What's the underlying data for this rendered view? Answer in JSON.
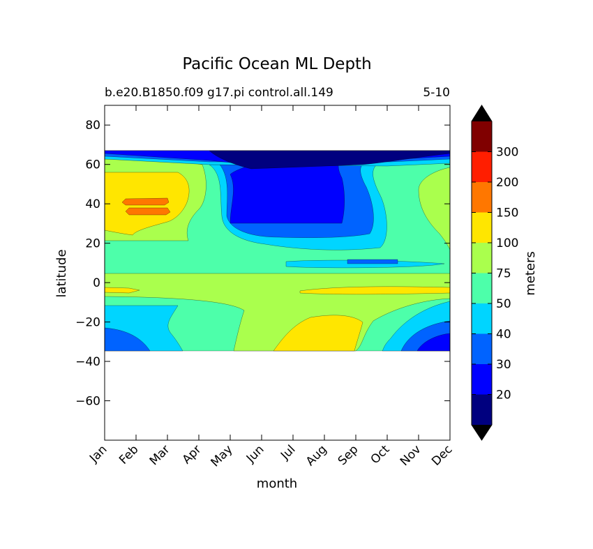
{
  "figure": {
    "title": "Pacific Ocean ML Depth",
    "subtitle_left": "b.e20.B1850.f09 g17.pi control.all.149",
    "subtitle_right": "5-10"
  },
  "chart_data": {
    "type": "heatmap",
    "title": "Pacific Ocean ML Depth",
    "xlabel": "month",
    "ylabel": "latitude",
    "x_ticks": [
      "Jan",
      "Feb",
      "Mar",
      "Apr",
      "May",
      "Jun",
      "Jul",
      "Aug",
      "Sep",
      "Oct",
      "Nov",
      "Dec"
    ],
    "y_ticks": [
      80,
      60,
      40,
      20,
      0,
      -20,
      -40,
      -60
    ],
    "ylim": [
      -80,
      90
    ],
    "data_lat_range": [
      -34,
      67
    ],
    "colorbar": {
      "label": "meters",
      "levels": [
        20,
        30,
        40,
        50,
        75,
        100,
        150,
        200,
        300
      ],
      "tick_labels": [
        "20",
        "30",
        "40",
        "50",
        "75",
        "100",
        "150",
        "200",
        "300"
      ],
      "colors": [
        "#00007f",
        "#0000ff",
        "#0063ff",
        "#00d5ff",
        "#4dffaa",
        "#aaff4d",
        "#ffe600",
        "#ff7700",
        "#ff1e00",
        "#800000"
      ],
      "extend": "both",
      "under_color": "#000000",
      "over_color": "#000000"
    },
    "bands": [
      {
        "lat_range": [
          62,
          67
        ],
        "description": "shallow",
        "level_color_index": 0
      },
      {
        "lat_range": [
          40,
          60
        ],
        "months": [
          "Feb",
          "Mar"
        ],
        "level_color_index": 7
      }
    ]
  }
}
